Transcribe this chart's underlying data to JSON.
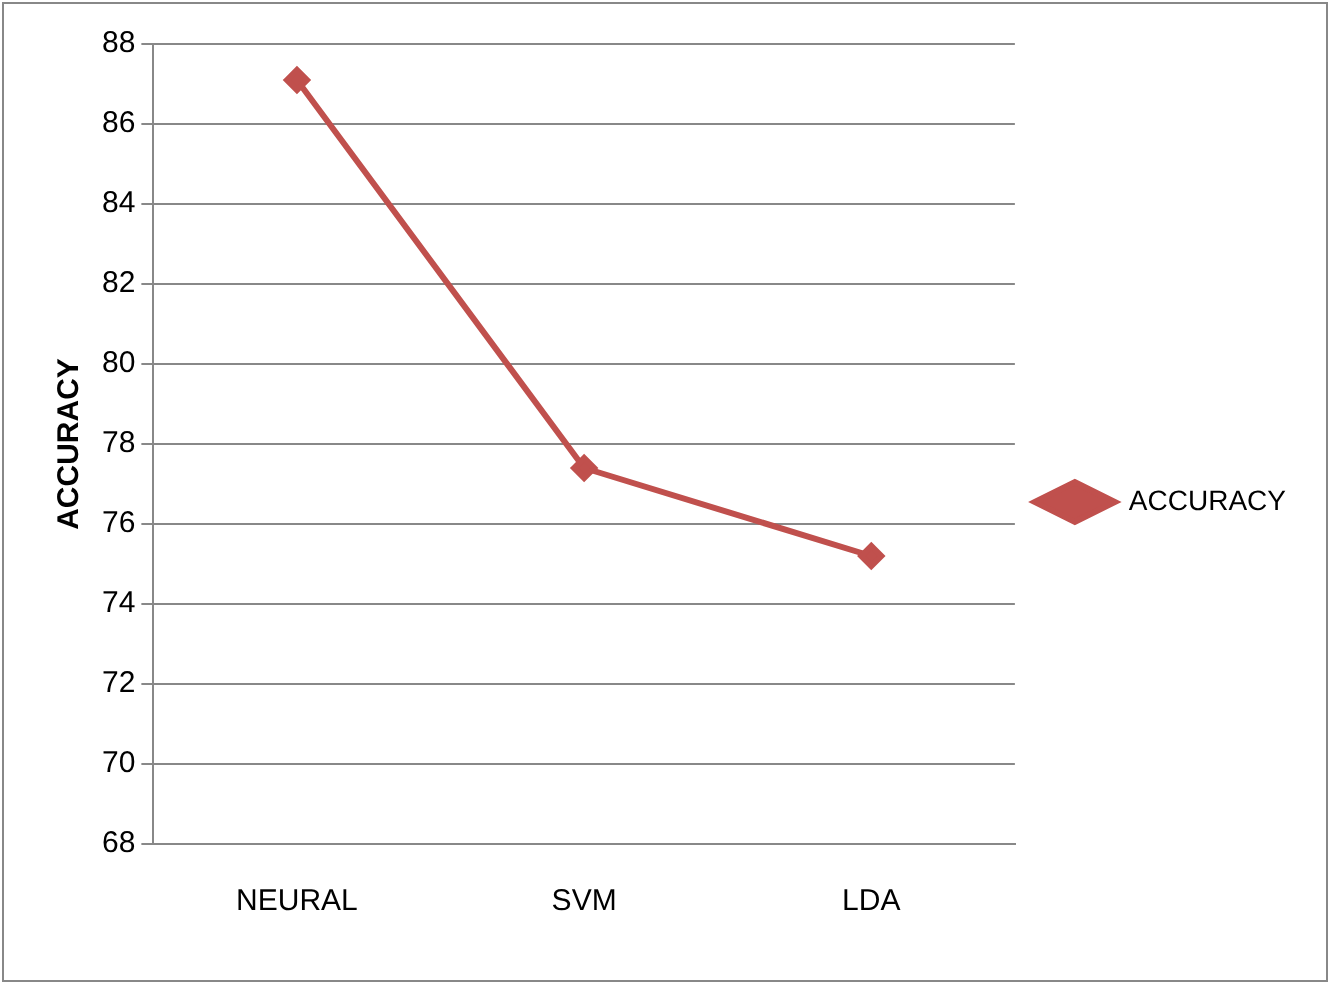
{
  "chart_data": {
    "type": "line",
    "ylabel": "ACCURACY",
    "categories": [
      "NEURAL",
      "SVM",
      "LDA"
    ],
    "series": [
      {
        "name": "ACCURACY",
        "color": "#c0504d",
        "values": [
          87.1,
          77.4,
          75.2
        ]
      }
    ],
    "ylim": [
      68,
      88
    ],
    "yticks": [
      68,
      70,
      72,
      74,
      76,
      78,
      80,
      82,
      84,
      86,
      88
    ],
    "grid": "y",
    "legend": "right",
    "marker": "diamond",
    "line_style": "solid"
  }
}
